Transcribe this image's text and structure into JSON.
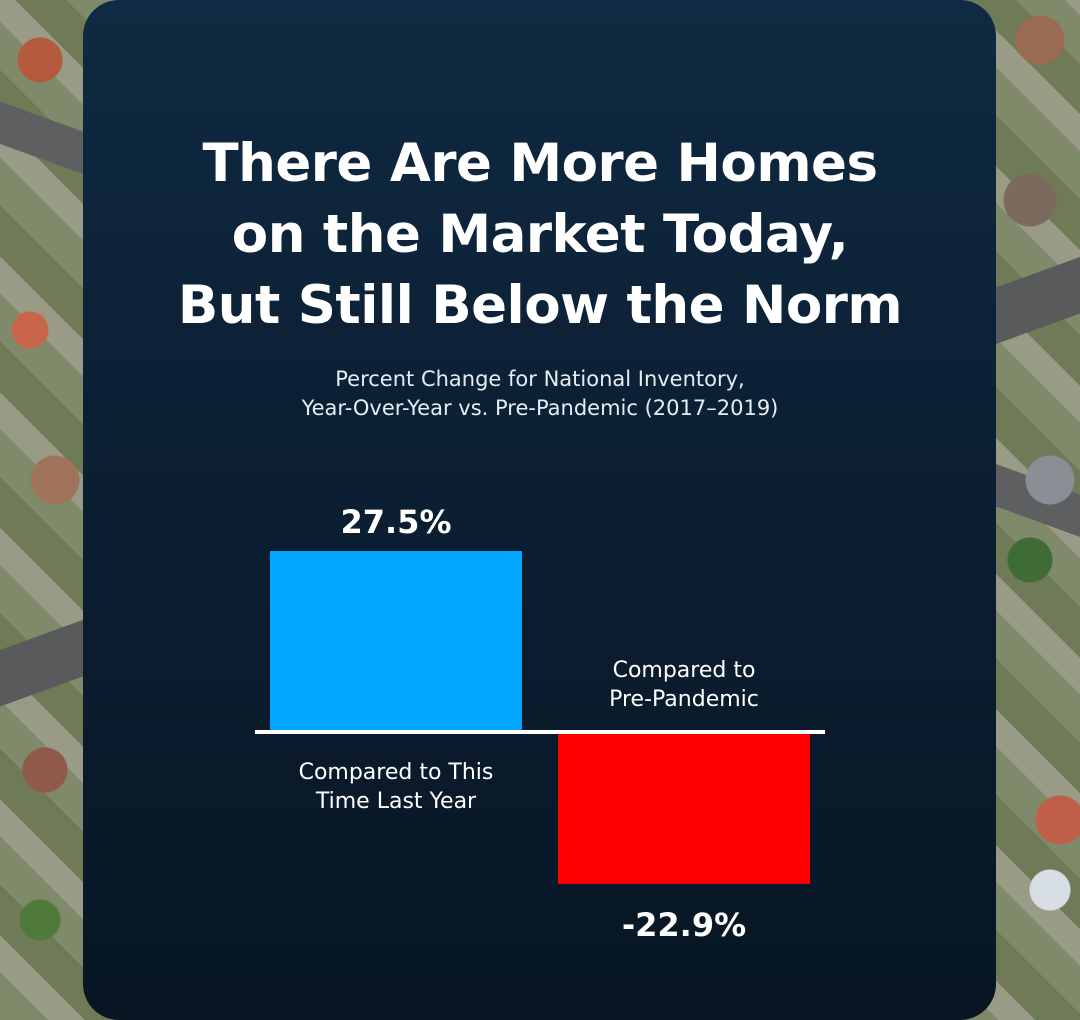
{
  "title": "There Are More Homes\non the Market Today,\nBut Still Below the Norm",
  "subtitle": "Percent Change for National Inventory,\nYear-Over-Year vs. Pre-Pandemic (2017–2019)",
  "chart_data": {
    "type": "bar",
    "categories": [
      "Compared to This Time Last Year",
      "Compared to Pre-Pandemic"
    ],
    "category_lines": [
      [
        "Compared to This",
        "Time Last Year"
      ],
      [
        "Compared to",
        "Pre-Pandemic"
      ]
    ],
    "values": [
      27.5,
      -22.9
    ],
    "value_labels": [
      "27.5%",
      "-22.9%"
    ],
    "colors": [
      "#00a6ff",
      "#ff0000"
    ],
    "baseline_color": "#ffffff",
    "xlabel": "",
    "ylabel": "",
    "grid": false,
    "legend": "none"
  }
}
